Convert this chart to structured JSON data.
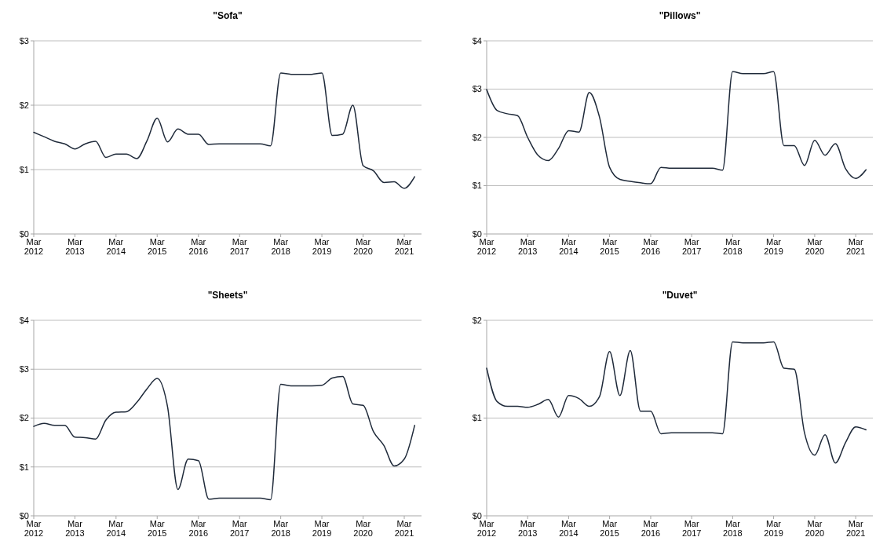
{
  "chart_data": [
    {
      "type": "line",
      "title": "\"Sofa\"",
      "color": "#1f2a3a",
      "grid": "y",
      "x": [
        "2012-03",
        "2012-06",
        "2012-09",
        "2012-12",
        "2013-03",
        "2013-06",
        "2013-09",
        "2013-12",
        "2014-03",
        "2014-06",
        "2014-09",
        "2014-12",
        "2015-03",
        "2015-06",
        "2015-09",
        "2015-12",
        "2016-03",
        "2016-06",
        "2016-09",
        "2016-12",
        "2017-03",
        "2017-06",
        "2017-09",
        "2017-12",
        "2018-03",
        "2018-06",
        "2018-09",
        "2018-12",
        "2019-03",
        "2019-06",
        "2019-09",
        "2019-12",
        "2020-03",
        "2020-06",
        "2020-09",
        "2020-12",
        "2021-03",
        "2021-06"
      ],
      "values": [
        1.58,
        1.51,
        1.44,
        1.4,
        1.32,
        1.4,
        1.44,
        1.19,
        1.24,
        1.24,
        1.17,
        1.45,
        1.8,
        1.43,
        1.63,
        1.55,
        1.55,
        1.39,
        1.4,
        1.4,
        1.4,
        1.4,
        1.4,
        1.37,
        2.5,
        2.48,
        2.48,
        2.48,
        2.5,
        1.53,
        1.55,
        2.0,
        1.06,
        0.98,
        0.8,
        0.81,
        0.71,
        0.89
      ],
      "xlim": [
        "2012-03",
        "2021-08"
      ],
      "xticks": [
        {
          "value": "2012-03",
          "label": "Mar 2012"
        },
        {
          "value": "2013-03",
          "label": "Mar 2013"
        },
        {
          "value": "2014-03",
          "label": "Mar 2014"
        },
        {
          "value": "2015-03",
          "label": "Mar 2015"
        },
        {
          "value": "2016-03",
          "label": "Mar 2016"
        },
        {
          "value": "2017-03",
          "label": "Mar 2017"
        },
        {
          "value": "2018-03",
          "label": "Mar 2018"
        },
        {
          "value": "2019-03",
          "label": "Mar 2019"
        },
        {
          "value": "2020-03",
          "label": "Mar 2020"
        },
        {
          "value": "2021-03",
          "label": "Mar 2021"
        }
      ],
      "ylim": [
        0,
        3
      ],
      "yticks": [
        {
          "value": 0,
          "label": "$0"
        },
        {
          "value": 1,
          "label": "$1"
        },
        {
          "value": 2,
          "label": "$2"
        },
        {
          "value": 3,
          "label": "$3"
        }
      ]
    },
    {
      "type": "line",
      "title": "\"Pillows\"",
      "color": "#1f2a3a",
      "grid": "y",
      "x": [
        "2012-03",
        "2012-06",
        "2012-09",
        "2012-12",
        "2013-03",
        "2013-06",
        "2013-09",
        "2013-12",
        "2014-03",
        "2014-06",
        "2014-09",
        "2014-12",
        "2015-03",
        "2015-06",
        "2015-09",
        "2015-12",
        "2016-03",
        "2016-06",
        "2016-09",
        "2016-12",
        "2017-03",
        "2017-06",
        "2017-09",
        "2017-12",
        "2018-03",
        "2018-06",
        "2018-09",
        "2018-12",
        "2019-03",
        "2019-06",
        "2019-09",
        "2019-12",
        "2020-03",
        "2020-06",
        "2020-09",
        "2020-12",
        "2021-03",
        "2021-06"
      ],
      "values": [
        2.99,
        2.56,
        2.49,
        2.45,
        2.0,
        1.63,
        1.52,
        1.77,
        2.14,
        2.11,
        2.93,
        2.42,
        1.38,
        1.13,
        1.09,
        1.06,
        1.04,
        1.38,
        1.36,
        1.36,
        1.36,
        1.36,
        1.36,
        1.32,
        3.36,
        3.32,
        3.32,
        3.32,
        3.36,
        1.83,
        1.83,
        1.42,
        1.94,
        1.63,
        1.87,
        1.35,
        1.15,
        1.33
      ],
      "xlim": [
        "2012-03",
        "2021-08"
      ],
      "xticks": [
        {
          "value": "2012-03",
          "label": "Mar 2012"
        },
        {
          "value": "2013-03",
          "label": "Mar 2013"
        },
        {
          "value": "2014-03",
          "label": "Mar 2014"
        },
        {
          "value": "2015-03",
          "label": "Mar 2015"
        },
        {
          "value": "2016-03",
          "label": "Mar 2016"
        },
        {
          "value": "2017-03",
          "label": "Mar 2017"
        },
        {
          "value": "2018-03",
          "label": "Mar 2018"
        },
        {
          "value": "2019-03",
          "label": "Mar 2019"
        },
        {
          "value": "2020-03",
          "label": "Mar 2020"
        },
        {
          "value": "2021-03",
          "label": "Mar 2021"
        }
      ],
      "ylim": [
        0,
        4
      ],
      "yticks": [
        {
          "value": 0,
          "label": "$0"
        },
        {
          "value": 1,
          "label": "$1"
        },
        {
          "value": 2,
          "label": "$2"
        },
        {
          "value": 3,
          "label": "$3"
        },
        {
          "value": 4,
          "label": "$4"
        }
      ]
    },
    {
      "type": "line",
      "title": "\"Sheets\"",
      "color": "#1f2a3a",
      "grid": "y",
      "x": [
        "2012-03",
        "2012-06",
        "2012-09",
        "2012-12",
        "2013-03",
        "2013-06",
        "2013-09",
        "2013-12",
        "2014-03",
        "2014-06",
        "2014-09",
        "2014-12",
        "2015-03",
        "2015-06",
        "2015-09",
        "2015-12",
        "2016-03",
        "2016-06",
        "2016-09",
        "2016-12",
        "2017-03",
        "2017-06",
        "2017-09",
        "2017-12",
        "2018-03",
        "2018-06",
        "2018-09",
        "2018-12",
        "2019-03",
        "2019-06",
        "2019-09",
        "2019-12",
        "2020-03",
        "2020-06",
        "2020-09",
        "2020-12",
        "2021-03",
        "2021-06"
      ],
      "values": [
        1.83,
        1.89,
        1.85,
        1.85,
        1.61,
        1.6,
        1.57,
        1.96,
        2.12,
        2.13,
        2.32,
        2.6,
        2.81,
        2.23,
        0.54,
        1.16,
        1.13,
        0.34,
        0.36,
        0.36,
        0.36,
        0.36,
        0.36,
        0.33,
        2.69,
        2.66,
        2.66,
        2.66,
        2.67,
        2.82,
        2.85,
        2.29,
        2.26,
        1.72,
        1.44,
        1.02,
        1.16,
        1.85
      ],
      "xlim": [
        "2012-03",
        "2021-08"
      ],
      "xticks": [
        {
          "value": "2012-03",
          "label": "Mar 2012"
        },
        {
          "value": "2013-03",
          "label": "Mar 2013"
        },
        {
          "value": "2014-03",
          "label": "Mar 2014"
        },
        {
          "value": "2015-03",
          "label": "Mar 2015"
        },
        {
          "value": "2016-03",
          "label": "Mar 2016"
        },
        {
          "value": "2017-03",
          "label": "Mar 2017"
        },
        {
          "value": "2018-03",
          "label": "Mar 2018"
        },
        {
          "value": "2019-03",
          "label": "Mar 2019"
        },
        {
          "value": "2020-03",
          "label": "Mar 2020"
        },
        {
          "value": "2021-03",
          "label": "Mar 2021"
        }
      ],
      "ylim": [
        0,
        4
      ],
      "yticks": [
        {
          "value": 0,
          "label": "$0"
        },
        {
          "value": 1,
          "label": "$1"
        },
        {
          "value": 2,
          "label": "$2"
        },
        {
          "value": 3,
          "label": "$3"
        },
        {
          "value": 4,
          "label": "$4"
        }
      ]
    },
    {
      "type": "line",
      "title": "\"Duvet\"",
      "color": "#1f2a3a",
      "grid": "y",
      "x": [
        "2012-03",
        "2012-06",
        "2012-09",
        "2012-12",
        "2013-03",
        "2013-06",
        "2013-09",
        "2013-12",
        "2014-03",
        "2014-06",
        "2014-09",
        "2014-12",
        "2015-03",
        "2015-06",
        "2015-09",
        "2015-12",
        "2016-03",
        "2016-06",
        "2016-09",
        "2016-12",
        "2017-03",
        "2017-06",
        "2017-09",
        "2017-12",
        "2018-03",
        "2018-06",
        "2018-09",
        "2018-12",
        "2019-03",
        "2019-06",
        "2019-09",
        "2019-12",
        "2020-03",
        "2020-06",
        "2020-09",
        "2020-12",
        "2021-03",
        "2021-06"
      ],
      "values": [
        1.51,
        1.17,
        1.12,
        1.12,
        1.11,
        1.14,
        1.19,
        1.01,
        1.23,
        1.2,
        1.12,
        1.22,
        1.68,
        1.23,
        1.69,
        1.07,
        1.07,
        0.84,
        0.85,
        0.85,
        0.85,
        0.85,
        0.85,
        0.84,
        1.78,
        1.77,
        1.77,
        1.77,
        1.78,
        1.51,
        1.5,
        0.85,
        0.62,
        0.83,
        0.54,
        0.75,
        0.91,
        0.88
      ],
      "xlim": [
        "2012-03",
        "2021-08"
      ],
      "xticks": [
        {
          "value": "2012-03",
          "label": "Mar 2012"
        },
        {
          "value": "2013-03",
          "label": "Mar 2013"
        },
        {
          "value": "2014-03",
          "label": "Mar 2014"
        },
        {
          "value": "2015-03",
          "label": "Mar 2015"
        },
        {
          "value": "2016-03",
          "label": "Mar 2016"
        },
        {
          "value": "2017-03",
          "label": "Mar 2017"
        },
        {
          "value": "2018-03",
          "label": "Mar 2018"
        },
        {
          "value": "2019-03",
          "label": "Mar 2019"
        },
        {
          "value": "2020-03",
          "label": "Mar 2020"
        },
        {
          "value": "2021-03",
          "label": "Mar 2021"
        }
      ],
      "ylim": [
        0,
        2
      ],
      "yticks": [
        {
          "value": 0,
          "label": "$0"
        },
        {
          "value": 1,
          "label": "$1"
        },
        {
          "value": 2,
          "label": "$2"
        }
      ]
    }
  ]
}
